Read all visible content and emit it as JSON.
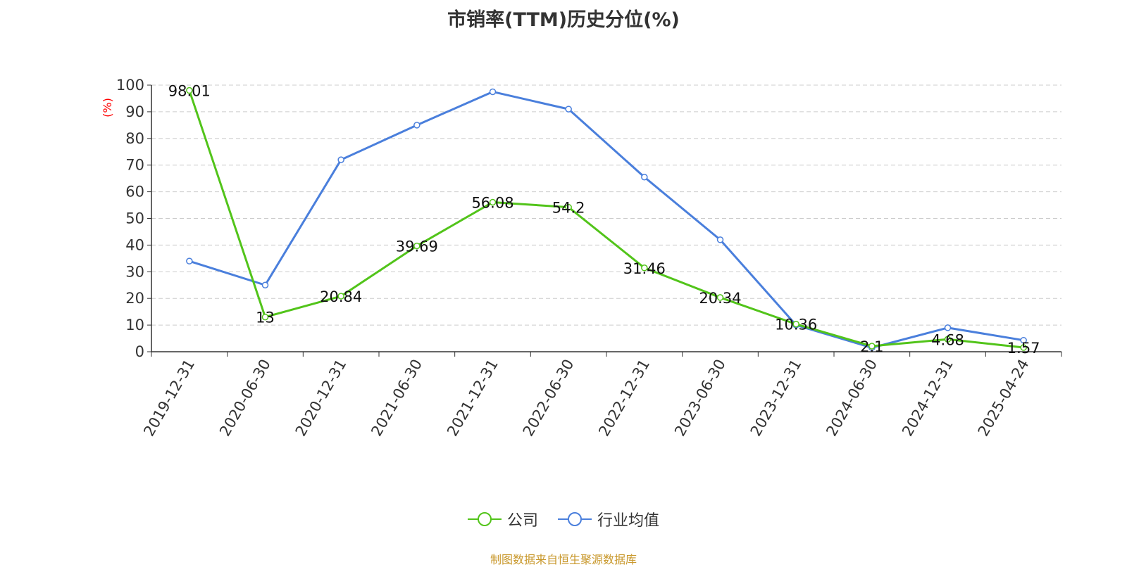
{
  "chart_data": {
    "type": "line",
    "title": "市销率(TTM)历史分位(%)",
    "ylabel": "(%)",
    "xlabel": "",
    "ylim": [
      0,
      100
    ],
    "yticks": [
      0,
      10,
      20,
      30,
      40,
      50,
      60,
      70,
      80,
      90,
      100
    ],
    "categories": [
      "2019-12-31",
      "2020-06-30",
      "2020-12-31",
      "2021-06-30",
      "2021-12-31",
      "2022-06-30",
      "2022-12-31",
      "2023-06-30",
      "2023-12-31",
      "2024-06-30",
      "2024-12-31",
      "2025-04-24"
    ],
    "grid": true,
    "legend_position": "bottom",
    "series": [
      {
        "name": "公司",
        "color": "#52c41a",
        "values": [
          98.01,
          13,
          20.84,
          39.69,
          56.08,
          54.2,
          31.46,
          20.34,
          10.36,
          2.1,
          4.68,
          1.57
        ],
        "labels": [
          "98.01",
          "13",
          "20.84",
          "39.69",
          "56.08",
          "54.2",
          "31.46",
          "20.34",
          "10.36",
          "2.1",
          "4.68",
          "1.57"
        ]
      },
      {
        "name": "行业均值",
        "color": "#4a7fdc",
        "values": [
          34,
          25,
          72,
          85,
          97.5,
          91,
          65.5,
          42,
          10,
          1.5,
          9,
          4.3
        ]
      }
    ]
  },
  "footer": {
    "source": "制图数据来自恒生聚源数据库"
  }
}
